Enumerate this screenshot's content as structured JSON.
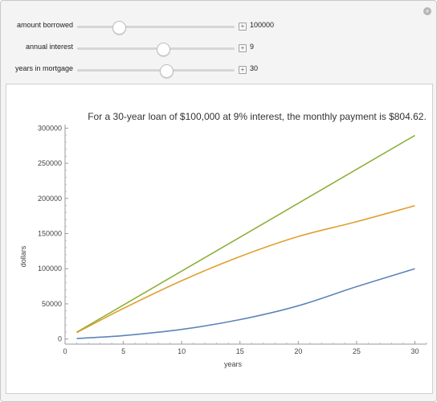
{
  "controls": {
    "amount": {
      "label": "amount borrowed",
      "value": "100000",
      "slider_fraction": 0.26
    },
    "interest": {
      "label": "annual interest",
      "value": "9",
      "slider_fraction": 0.54
    },
    "years": {
      "label": "years in mortgage",
      "value": "30",
      "slider_fraction": 0.56
    }
  },
  "plot": {
    "title": "For a 30-year loan of $100,000 at 9% interest, the monthly payment is $804.62.",
    "xlabel": "years",
    "ylabel": "dollars"
  },
  "colors": {
    "green": "#8db03a",
    "orange": "#e0a030",
    "blue": "#5f84b8"
  },
  "chart_data": {
    "type": "line",
    "title": "For a 30-year loan of $100,000 at 9% interest, the monthly payment is $804.62.",
    "xlabel": "years",
    "ylabel": "dollars",
    "xlim": [
      0,
      31
    ],
    "ylim": [
      -5000,
      305000
    ],
    "x_ticks": [
      0,
      5,
      10,
      15,
      20,
      25,
      30
    ],
    "y_ticks": [
      0,
      50000,
      100000,
      150000,
      200000,
      250000,
      300000
    ],
    "y_tick_labels": [
      "0",
      "50000",
      "100000",
      "150000",
      "200000",
      "250000",
      "300000"
    ],
    "x": [
      1,
      5,
      10,
      15,
      20,
      25,
      30
    ],
    "series": [
      {
        "color": "#8db03a",
        "values": [
          9656,
          48277,
          96554,
          144832,
          193109,
          241386,
          289663
        ]
      },
      {
        "color": "#e0a030",
        "values": [
          8973,
          43440,
          82941,
          117254,
          145830,
          166902,
          189663
        ]
      },
      {
        "color": "#5f84b8",
        "values": [
          683,
          4837,
          13613,
          27578,
          47279,
          74484,
          100000
        ]
      }
    ]
  }
}
